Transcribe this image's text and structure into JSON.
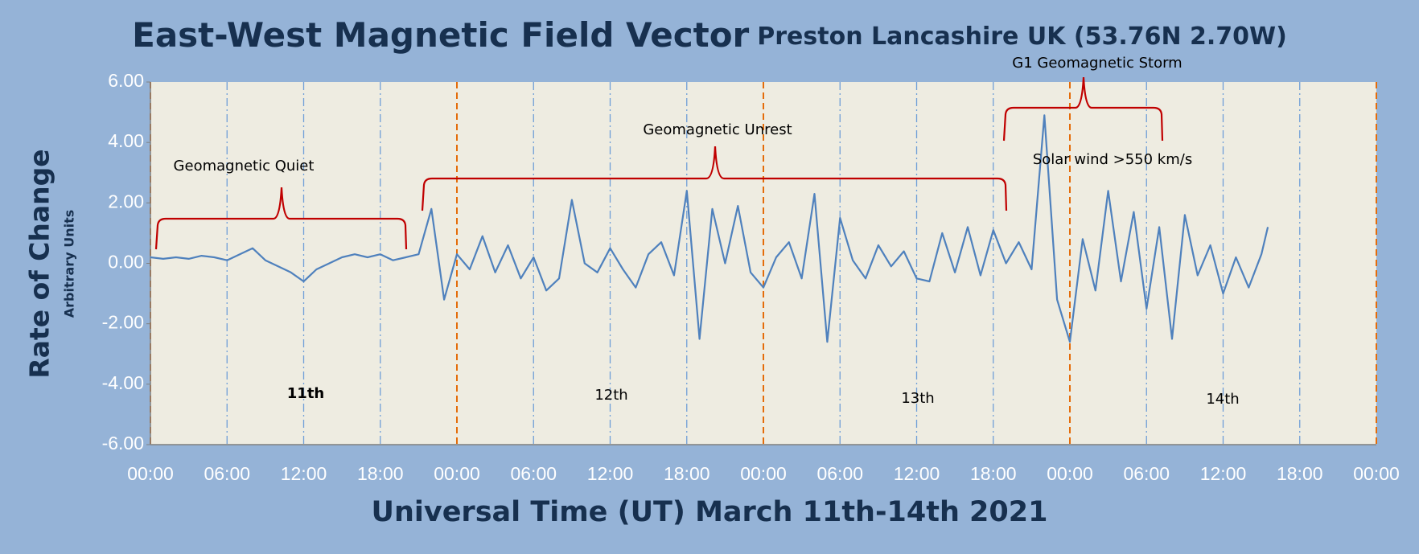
{
  "chart_data": {
    "type": "line",
    "title": "East-West Magnetic Field Vector",
    "subtitle": "Preston Lancashire UK (53.76N 2.70W)",
    "x_label": "Universal Time (UT) March 11th-14th 2021",
    "y_label": "Rate of Change",
    "y_sublabel": "Arbitrary Units",
    "annotations": [
      "Geomagnetic Quiet",
      "Geomagnetic Unrest",
      "G1 Geomagnetic Storm",
      "Solar wind >550 km/s"
    ],
    "day_labels": [
      "11th",
      "12th",
      "13th",
      "14th"
    ],
    "x": [
      0,
      1,
      2,
      3,
      4,
      5,
      6,
      7,
      8,
      9,
      10,
      11,
      12,
      13,
      14,
      15,
      16,
      17,
      18,
      19,
      20,
      21,
      22,
      23,
      24,
      25,
      26,
      27,
      28,
      29,
      30,
      31,
      32,
      33,
      34,
      35,
      36,
      37,
      38,
      39,
      40,
      41,
      42,
      43,
      44,
      45,
      46,
      47,
      48,
      49,
      50,
      51,
      52,
      53,
      54,
      55,
      56,
      57,
      58,
      59,
      60,
      61,
      62,
      63,
      64,
      65,
      66,
      67,
      68,
      69,
      70,
      71,
      72,
      73,
      74,
      75,
      76,
      77,
      78,
      79,
      80,
      81,
      82,
      83,
      84,
      85,
      86,
      87,
      87.5
    ],
    "series": [
      {
        "name": "East-West Magnetic Field Vector",
        "color": "#4f81bd",
        "values": [
          0.2,
          0.15,
          0.2,
          0.15,
          0.25,
          0.2,
          0.1,
          0.3,
          0.5,
          0.1,
          -0.1,
          -0.3,
          -0.6,
          -0.2,
          0.0,
          0.2,
          0.3,
          0.2,
          0.3,
          0.1,
          0.2,
          0.3,
          1.8,
          -1.2,
          0.3,
          -0.2,
          0.9,
          -0.3,
          0.6,
          -0.5,
          0.2,
          -0.9,
          -0.5,
          2.1,
          0.0,
          -0.3,
          0.5,
          -0.2,
          -0.8,
          0.3,
          0.7,
          -0.4,
          2.4,
          -2.5,
          1.8,
          0.0,
          1.9,
          -0.3,
          -0.8,
          0.2,
          0.7,
          -0.5,
          2.3,
          -2.6,
          1.5,
          0.1,
          -0.5,
          0.6,
          -0.1,
          0.4,
          -0.5,
          -0.6,
          1.0,
          -0.3,
          1.2,
          -0.4,
          1.1,
          0.0,
          0.7,
          -0.2,
          4.9,
          -1.2,
          -2.6,
          0.8,
          -0.9,
          2.4,
          -0.6,
          1.7,
          -1.5,
          1.2,
          -2.5,
          1.6,
          -0.4,
          0.6,
          -1.0,
          0.2,
          -0.8,
          0.3,
          1.2
        ]
      }
    ],
    "xlim": [
      0,
      96
    ],
    "xticks": [
      {
        "value": 0,
        "label": "00:00"
      },
      {
        "value": 6,
        "label": "06:00"
      },
      {
        "value": 12,
        "label": "12:00"
      },
      {
        "value": 18,
        "label": "18:00"
      },
      {
        "value": 24,
        "label": "00:00"
      },
      {
        "value": 30,
        "label": "06:00"
      },
      {
        "value": 36,
        "label": "12:00"
      },
      {
        "value": 42,
        "label": "18:00"
      },
      {
        "value": 48,
        "label": "00:00"
      },
      {
        "value": 54,
        "label": "06:00"
      },
      {
        "value": 60,
        "label": "12:00"
      },
      {
        "value": 66,
        "label": "18:00"
      },
      {
        "value": 72,
        "label": "00:00"
      },
      {
        "value": 78,
        "label": "06:00"
      },
      {
        "value": 84,
        "label": "12:00"
      },
      {
        "value": 90,
        "label": "18:00"
      },
      {
        "value": 96,
        "label": "00:00"
      }
    ],
    "ylim": [
      -6,
      6
    ],
    "yticks": [
      {
        "value": -6,
        "label": "-6.00"
      },
      {
        "value": -4,
        "label": "-4.00"
      },
      {
        "value": -2,
        "label": "-2.00"
      },
      {
        "value": 0,
        "label": "0.00"
      },
      {
        "value": 2,
        "label": "2.00"
      },
      {
        "value": 4,
        "label": "4.00"
      },
      {
        "value": 6,
        "label": "6.00"
      }
    ],
    "grid": true
  }
}
